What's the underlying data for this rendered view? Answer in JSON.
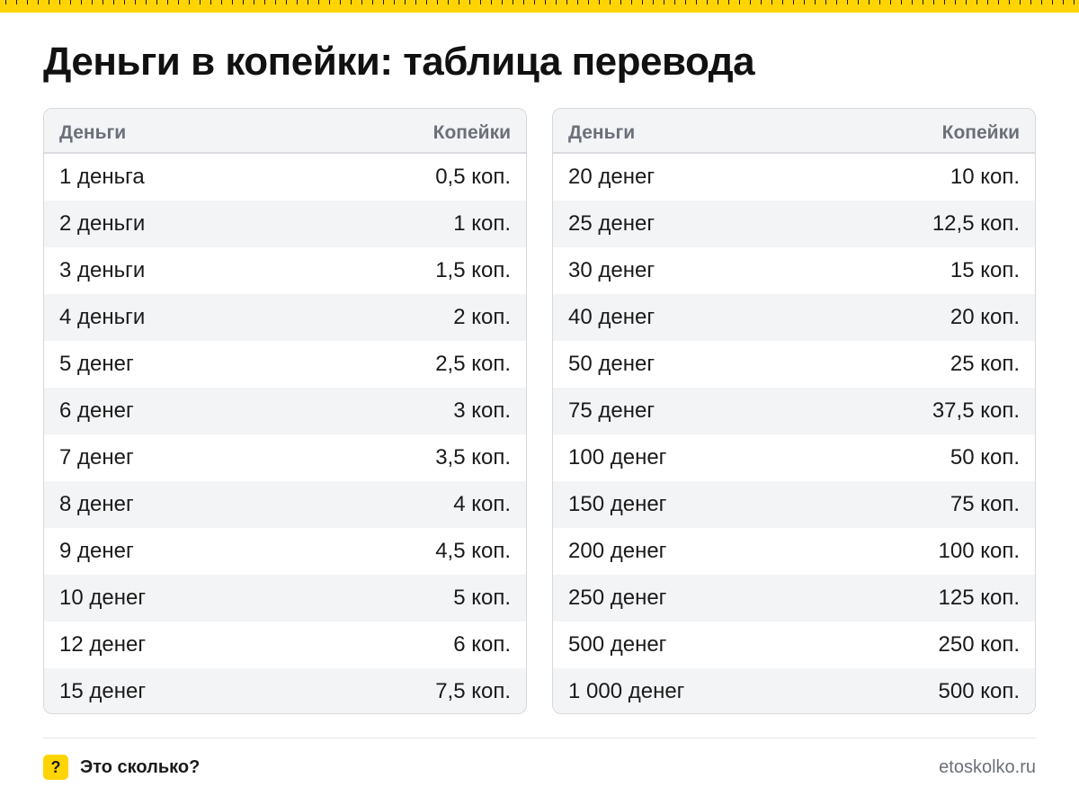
{
  "title": "Деньги в копейки: таблица перевода",
  "colors": {
    "accent": "#ffd400",
    "header_bg": "#f3f4f6",
    "text": "#1a1a1a",
    "muted": "#6b7078"
  },
  "tables": [
    {
      "headers": [
        "Деньги",
        "Копейки"
      ],
      "rows": [
        [
          "1 деньга",
          "0,5 коп."
        ],
        [
          "2 деньги",
          "1 коп."
        ],
        [
          "3 деньги",
          "1,5 коп."
        ],
        [
          "4 деньги",
          "2 коп."
        ],
        [
          "5 денег",
          "2,5 коп."
        ],
        [
          "6 денег",
          "3 коп."
        ],
        [
          "7 денег",
          "3,5 коп."
        ],
        [
          "8 денег",
          "4 коп."
        ],
        [
          "9 денег",
          "4,5 коп."
        ],
        [
          "10 денег",
          "5 коп."
        ],
        [
          "12 денег",
          "6 коп."
        ],
        [
          "15 денег",
          "7,5 коп."
        ]
      ]
    },
    {
      "headers": [
        "Деньги",
        "Копейки"
      ],
      "rows": [
        [
          "20 денег",
          "10 коп."
        ],
        [
          "25 денег",
          "12,5 коп."
        ],
        [
          "30 денег",
          "15 коп."
        ],
        [
          "40 денег",
          "20 коп."
        ],
        [
          "50 денег",
          "25 коп."
        ],
        [
          "75 денег",
          "37,5 коп."
        ],
        [
          "100 денег",
          "50 коп."
        ],
        [
          "150 денег",
          "75 коп."
        ],
        [
          "200 денег",
          "100 коп."
        ],
        [
          "250 денег",
          "125 коп."
        ],
        [
          "500 денег",
          "250 коп."
        ],
        [
          "1 000 денег",
          "500 коп."
        ]
      ]
    }
  ],
  "footer": {
    "brand_mark": "?",
    "brand_name": "Это сколько?",
    "site": "etoskolko.ru"
  }
}
